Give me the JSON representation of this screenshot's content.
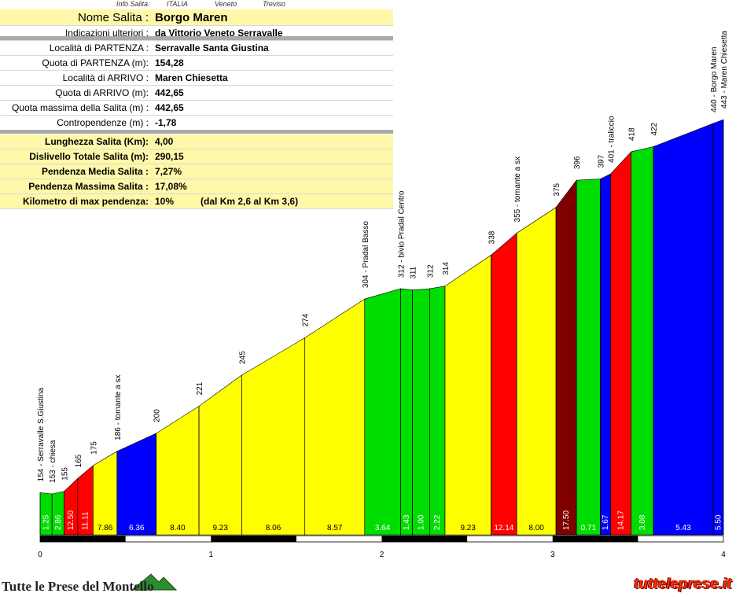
{
  "header": {
    "col1": "Info Salita:",
    "col2": "ITALIA",
    "col3": "Veneto",
    "col4": "Treviso"
  },
  "info_rows_top": [
    {
      "label": "Nome Salita :",
      "value": "Borgo Maren"
    },
    {
      "label": "Indicazioni ulteriori :",
      "value": "da Vittorio Veneto Serravalle"
    }
  ],
  "info_rows_mid": [
    {
      "label": "Località di PARTENZA :",
      "value": "Serravalle Santa Giustina"
    },
    {
      "label": "Quota di PARTENZA (m):",
      "value": "154,28"
    },
    {
      "label": "Località di ARRIVO :",
      "value": "Maren Chiesetta"
    },
    {
      "label": "Quota di ARRIVO (m):",
      "value": "442,65"
    },
    {
      "label": "Quota massima della Salita (m) :",
      "value": "442,65"
    },
    {
      "label": "Contropendenze (m) :",
      "value": "-1,78"
    }
  ],
  "info_rows_bottom": [
    {
      "label": "Lunghezza Salita (Km):",
      "value": "4,00",
      "extra": ""
    },
    {
      "label": "Dislivello Totale Salita (m):",
      "value": "290,15",
      "extra": ""
    },
    {
      "label": "Pendenza Media Salita :",
      "value": "7,27%",
      "extra": ""
    },
    {
      "label": "Pendenza Massima Salita :",
      "value": "17,08%",
      "extra": ""
    },
    {
      "label": "Kilometro di max pendenza:",
      "value": "10%",
      "extra": "(dal Km 2,6 al Km 3,6)"
    }
  ],
  "footer": {
    "left": "Tutte le Prese del Montello",
    "right": "tutteleprese.it"
  },
  "chart_data": {
    "type": "area",
    "xlabel": "",
    "ylabel": "",
    "xlim": [
      0,
      4
    ],
    "ylim": [
      0,
      443
    ],
    "x_ticks": [
      "0",
      "1",
      "2",
      "3",
      "4"
    ],
    "segments": [
      {
        "x0": 0.0,
        "x1": 0.07,
        "grade": "1.25",
        "color": "#00dd00"
      },
      {
        "x0": 0.07,
        "x1": 0.14,
        "grade": "2.86",
        "color": "#00dd00"
      },
      {
        "x0": 0.14,
        "x1": 0.22,
        "grade": "12.50",
        "color": "#ff0000"
      },
      {
        "x0": 0.22,
        "x1": 0.31,
        "grade": "11.11",
        "color": "#ff0000"
      },
      {
        "x0": 0.31,
        "x1": 0.45,
        "grade": "7.86",
        "color": "#ffff00"
      },
      {
        "x0": 0.45,
        "x1": 0.68,
        "grade": "6.36",
        "color": "#0000ff"
      },
      {
        "x0": 0.68,
        "x1": 0.93,
        "grade": "8.40",
        "color": "#ffff00"
      },
      {
        "x0": 0.93,
        "x1": 1.18,
        "grade": "9.23",
        "color": "#ffff00"
      },
      {
        "x0": 1.18,
        "x1": 1.55,
        "grade": "8.06",
        "color": "#ffff00"
      },
      {
        "x0": 1.55,
        "x1": 1.9,
        "grade": "8.57",
        "color": "#ffff00"
      },
      {
        "x0": 1.9,
        "x1": 2.11,
        "grade": "3.64",
        "color": "#00dd00"
      },
      {
        "x0": 2.11,
        "x1": 2.18,
        "grade": "1.43",
        "color": "#00dd00"
      },
      {
        "x0": 2.18,
        "x1": 2.28,
        "grade": "1.00",
        "color": "#00dd00"
      },
      {
        "x0": 2.28,
        "x1": 2.37,
        "grade": "2.22",
        "color": "#00dd00"
      },
      {
        "x0": 2.37,
        "x1": 2.64,
        "grade": "9.23",
        "color": "#ffff00"
      },
      {
        "x0": 2.64,
        "x1": 2.79,
        "grade": "12.14",
        "color": "#ff0000"
      },
      {
        "x0": 2.79,
        "x1": 3.02,
        "grade": "8.00",
        "color": "#ffff00"
      },
      {
        "x0": 3.02,
        "x1": 3.14,
        "grade": "17.50",
        "color": "#800000"
      },
      {
        "x0": 3.14,
        "x1": 3.28,
        "grade": "0.71",
        "color": "#00dd00"
      },
      {
        "x0": 3.28,
        "x1": 3.34,
        "grade": "1.67",
        "color": "#0000ff"
      },
      {
        "x0": 3.34,
        "x1": 3.46,
        "grade": "14.17",
        "color": "#ff0000"
      },
      {
        "x0": 3.46,
        "x1": 3.59,
        "grade": "3.08",
        "color": "#00dd00"
      },
      {
        "x0": 3.59,
        "x1": 3.94,
        "grade": "5.43",
        "color": "#0000ff"
      },
      {
        "x0": 3.94,
        "x1": 4.0,
        "grade": "5.50",
        "color": "#0000ff"
      }
    ],
    "profile": [
      {
        "x": 0.0,
        "alt": 154,
        "label": "154 - Serravalle S.Giustina"
      },
      {
        "x": 0.07,
        "alt": 153,
        "label": "153 - chiesa"
      },
      {
        "x": 0.14,
        "alt": 155,
        "label": "155"
      },
      {
        "x": 0.22,
        "alt": 165,
        "label": "165"
      },
      {
        "x": 0.31,
        "alt": 175,
        "label": "175"
      },
      {
        "x": 0.45,
        "alt": 186,
        "label": "186 - tornante a sx"
      },
      {
        "x": 0.68,
        "alt": 200,
        "label": "200"
      },
      {
        "x": 0.93,
        "alt": 221,
        "label": "221"
      },
      {
        "x": 1.18,
        "alt": 245,
        "label": "245"
      },
      {
        "x": 1.55,
        "alt": 274,
        "label": "274"
      },
      {
        "x": 1.9,
        "alt": 304,
        "label": "304 - Pradal Basso"
      },
      {
        "x": 2.11,
        "alt": 312,
        "label": "312 - bivio Pradal Centro"
      },
      {
        "x": 2.18,
        "alt": 311,
        "label": "311"
      },
      {
        "x": 2.28,
        "alt": 312,
        "label": "312"
      },
      {
        "x": 2.37,
        "alt": 314,
        "label": "314"
      },
      {
        "x": 2.64,
        "alt": 338,
        "label": "338"
      },
      {
        "x": 2.79,
        "alt": 355,
        "label": "355 - tornante a sx"
      },
      {
        "x": 3.02,
        "alt": 375,
        "label": "375"
      },
      {
        "x": 3.14,
        "alt": 396,
        "label": "396"
      },
      {
        "x": 3.28,
        "alt": 397,
        "label": "397"
      },
      {
        "x": 3.34,
        "alt": 401,
        "label": "401 - traliccio"
      },
      {
        "x": 3.46,
        "alt": 418,
        "label": "418"
      },
      {
        "x": 3.59,
        "alt": 422,
        "label": "422"
      },
      {
        "x": 3.94,
        "alt": 440,
        "label": "440 - Borgo Maren"
      },
      {
        "x": 4.0,
        "alt": 443,
        "label": "443 - Maren Chiesetta"
      }
    ],
    "grid": false,
    "legend": "none"
  }
}
